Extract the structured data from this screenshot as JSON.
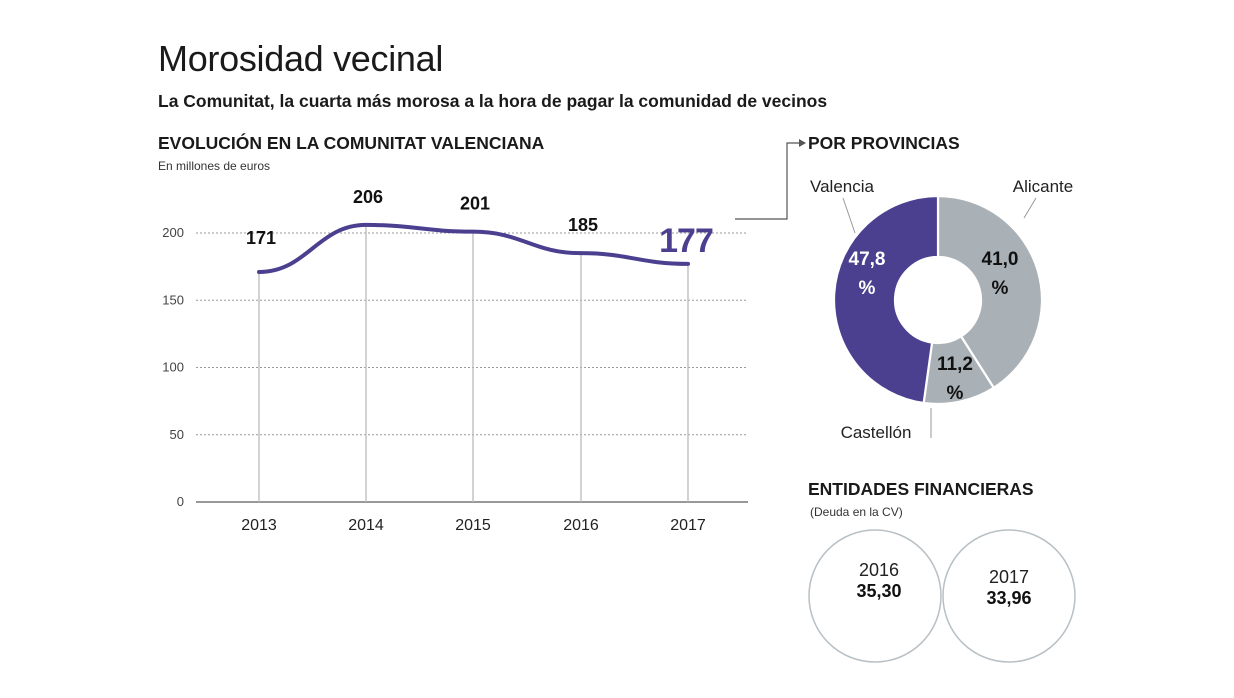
{
  "header": {
    "title": "Morosidad vecinal",
    "subtitle": "La Comunitat, la cuarta más morosa a la hora de pagar la comunidad de vecinos"
  },
  "line_section": {
    "heading": "EVOLUCIÓN EN LA COMUNITAT VALENCIANA",
    "unit": "En millones de euros"
  },
  "pie_section": {
    "heading": "POR PROVINCIAS"
  },
  "bank_section": {
    "heading": "ENTIDADES FINANCIERAS",
    "sub": "(Deuda en la CV)",
    "items": [
      {
        "year": "2016",
        "value": "35,30"
      },
      {
        "year": "2017",
        "value": "33,96"
      }
    ]
  },
  "colors": {
    "accent": "#4b3f8f",
    "grey": "#a9b1b7",
    "grid": "#9a9a9a"
  },
  "chart_data": [
    {
      "type": "line",
      "title": "EVOLUCIÓN EN LA COMUNITAT VALENCIANA",
      "ylabel": "En millones de euros",
      "x": [
        "2013",
        "2014",
        "2015",
        "2016",
        "2017"
      ],
      "values": [
        171,
        206,
        201,
        185,
        177
      ],
      "value_labels": [
        "171",
        "206",
        "201",
        "185",
        "177"
      ],
      "yticks": [
        "0",
        "50",
        "100",
        "150",
        "200"
      ],
      "ylim": [
        0,
        200
      ],
      "grid": true
    },
    {
      "type": "pie",
      "title": "POR PROVINCIAS",
      "labels": [
        "Valencia",
        "Alicante",
        "Castellón"
      ],
      "values": [
        47.8,
        41.0,
        11.2
      ],
      "value_labels": [
        "47,8",
        "41,0",
        "11,2"
      ],
      "unit": "%",
      "colors": [
        "#4b3f8f",
        "#a9b1b7",
        "#a9b1b7"
      ]
    }
  ]
}
